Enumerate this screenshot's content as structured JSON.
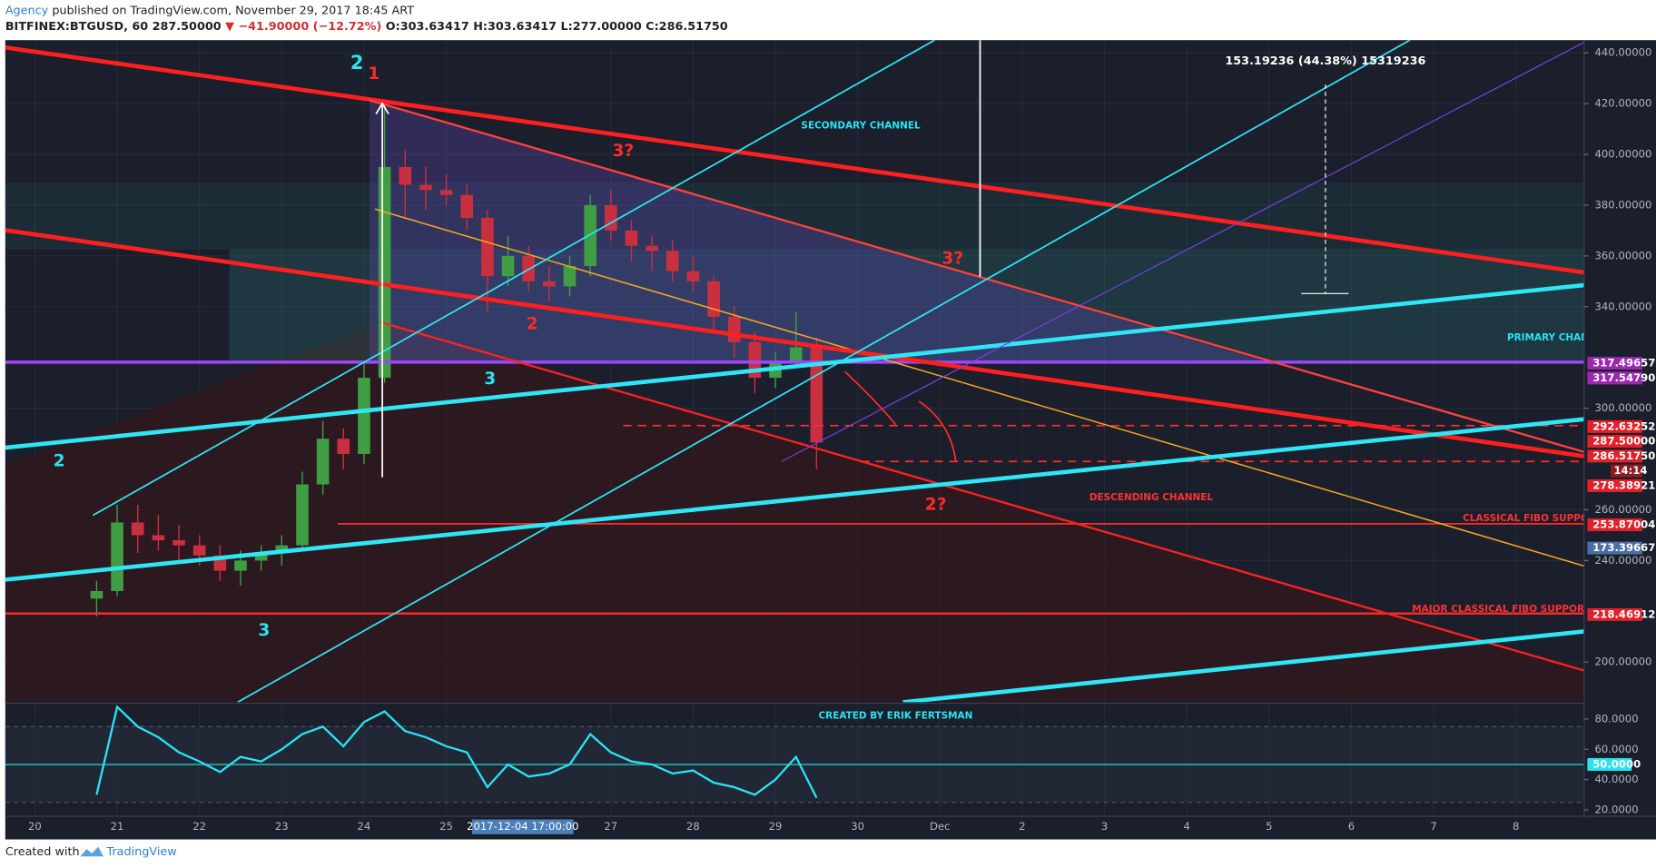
{
  "header": {
    "author": "Agency",
    "published": "published on TradingView.com, November 29, 2017 18:45 ART",
    "symbol": "BITFINEX:BTGUSD, 60",
    "last": "287.50000",
    "change": "▼ −41.90000 (−12.72%)",
    "ohlc": "O:303.63417 H:303.63417 L:277.00000 C:286.51750"
  },
  "chart_data": [
    {
      "type": "candlestick",
      "x": [
        20.75,
        21,
        21.25,
        21.5,
        21.75,
        22,
        22.25,
        22.5,
        22.75,
        23,
        23.25,
        23.5,
        23.75,
        24,
        24.25,
        24.5,
        24.75,
        25,
        25.25,
        25.5,
        25.75,
        26,
        26.25,
        26.5,
        26.75,
        27,
        27.25,
        27.5,
        27.75,
        28,
        28.25,
        28.5,
        28.75,
        29,
        29.25,
        29.5
      ],
      "open": [
        225,
        228,
        255,
        250,
        248,
        246,
        242,
        236,
        240,
        243,
        246,
        270,
        288,
        282,
        312,
        395,
        388,
        386,
        384,
        375,
        352,
        360,
        350,
        348,
        356,
        380,
        370,
        364,
        362,
        354,
        350,
        336,
        326,
        312,
        318,
        324
      ],
      "high": [
        232,
        262,
        262,
        258,
        254,
        250,
        246,
        244,
        246,
        250,
        275,
        295,
        292,
        318,
        421,
        402,
        395,
        392,
        388,
        378,
        368,
        364,
        356,
        360,
        384,
        386,
        374,
        368,
        366,
        360,
        352,
        340,
        330,
        322,
        338,
        328
      ],
      "low": [
        218,
        226,
        243,
        244,
        240,
        238,
        232,
        230,
        236,
        238,
        244,
        266,
        276,
        278,
        310,
        375,
        378,
        380,
        370,
        338,
        348,
        346,
        342,
        344,
        352,
        366,
        358,
        354,
        350,
        346,
        330,
        320,
        306,
        308,
        316,
        276
      ],
      "close": [
        228,
        255,
        250,
        248,
        246,
        242,
        236,
        240,
        243,
        246,
        270,
        288,
        282,
        312,
        395,
        388,
        386,
        384,
        375,
        352,
        360,
        350,
        348,
        356,
        380,
        370,
        364,
        362,
        354,
        350,
        336,
        326,
        312,
        318,
        324,
        286.5175
      ],
      "up_color": "#3f9e44",
      "down_color": "#c9303f",
      "xlim": [
        19.64,
        38.83
      ],
      "ylim": [
        184.2,
        445
      ],
      "xticks": [
        20,
        21,
        22,
        23,
        24,
        25,
        27,
        28,
        29,
        30,
        {
          "value": 31,
          "label": "Dec"
        },
        {
          "value": 32,
          "label": "2"
        },
        {
          "value": 33,
          "label": "3"
        },
        {
          "value": 34,
          "label": "4"
        },
        {
          "value": 35,
          "label": "5"
        },
        {
          "value": 36,
          "label": "6"
        },
        {
          "value": 37,
          "label": "7"
        },
        {
          "value": 38,
          "label": "8"
        }
      ],
      "yticks": [
        {
          "value": 200,
          "label": "200.00000"
        },
        {
          "value": 240,
          "label": "240.00000"
        },
        {
          "value": 260,
          "label": "260.00000"
        },
        {
          "value": 300,
          "label": "300.00000"
        },
        {
          "value": 340,
          "label": "340.00000"
        },
        {
          "value": 360,
          "label": "360.00000"
        },
        {
          "value": 380,
          "label": "380.00000"
        },
        {
          "value": 400,
          "label": "400.00000"
        },
        {
          "value": 420,
          "label": "420.00000"
        },
        {
          "value": 440,
          "label": "440.00000"
        }
      ],
      "grid": true
    },
    {
      "type": "line",
      "x": [
        20.75,
        21,
        21.25,
        21.5,
        21.75,
        22,
        22.25,
        22.5,
        22.75,
        23,
        23.25,
        23.5,
        23.75,
        24,
        24.25,
        24.5,
        24.75,
        25,
        25.25,
        25.5,
        25.75,
        26,
        26.25,
        26.5,
        26.75,
        27,
        27.25,
        27.5,
        27.75,
        28,
        28.25,
        28.5,
        28.75,
        29,
        29.25,
        29.5
      ],
      "values": [
        30,
        88,
        75,
        68,
        58,
        52,
        45,
        55,
        52,
        60,
        70,
        75,
        62,
        78,
        85,
        72,
        68,
        62,
        58,
        35,
        50,
        42,
        44,
        50,
        70,
        58,
        52,
        50,
        44,
        46,
        38,
        35,
        30,
        40,
        55,
        28
      ],
      "color": "#29e3f2",
      "xlim": [
        19.64,
        38.83
      ],
      "ylim": [
        16.5,
        89
      ],
      "yticks": [
        {
          "value": 20,
          "label": "20.0000"
        },
        {
          "value": 40,
          "label": "40.0000"
        },
        {
          "value": 60,
          "label": "60.0000"
        },
        {
          "value": 80,
          "label": "80.0000"
        }
      ],
      "level": {
        "value": 50,
        "label": "50.0000"
      },
      "bands": [
        25,
        75
      ]
    }
  ],
  "annotations": [
    "2",
    "1",
    "3?",
    "3?",
    "2",
    "3",
    "2",
    "3",
    "2?",
    "SECONDARY CHANNEL",
    "PRIMARY CHAN",
    "DESCENDING CHANNEL",
    "CLASSICAL FIBO SUPPO",
    "MAJOR CLASSICAL FIBO SUPPOR",
    "153.19236 (44.38%) 15319236",
    "CREATED BY ERIK FERTSMAN"
  ],
  "axis_badges": [
    "317.49657",
    "317.54790",
    "292.63252",
    "287.50000",
    "286.51750",
    "14:14",
    "278.38921",
    "253.87004",
    "173.39667",
    "218.46912"
  ],
  "crosshair_label": "2017-12-04 17:00:00",
  "footer": {
    "created": "Created with",
    "brand": "TradingView"
  }
}
